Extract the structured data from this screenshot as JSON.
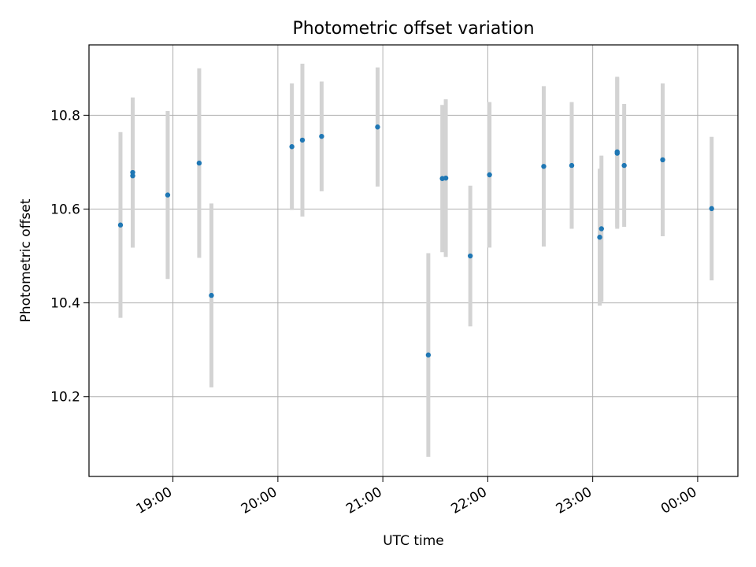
{
  "chart_data": {
    "type": "scatter",
    "title": "Photometric offset variation",
    "xlabel": "UTC time",
    "ylabel": "Photometric offset",
    "x_axis_type": "time",
    "xlim": [
      "18:12",
      "24:23"
    ],
    "ylim": [
      10.03,
      10.95
    ],
    "x_ticks": [
      {
        "value": "19:00",
        "label": "19:00"
      },
      {
        "value": "20:00",
        "label": "20:00"
      },
      {
        "value": "21:00",
        "label": "21:00"
      },
      {
        "value": "22:00",
        "label": "22:00"
      },
      {
        "value": "23:00",
        "label": "23:00"
      },
      {
        "value": "24:00",
        "label": "00:00"
      }
    ],
    "y_ticks": [
      {
        "value": 10.2,
        "label": "10.2"
      },
      {
        "value": 10.4,
        "label": "10.4"
      },
      {
        "value": 10.6,
        "label": "10.6"
      },
      {
        "value": 10.8,
        "label": "10.8"
      }
    ],
    "grid": true,
    "marker_color": "#1f77b4",
    "errorbar_color": "#d3d3d3",
    "points": [
      {
        "x": "18:30",
        "y": 10.566,
        "err_low": 10.368,
        "err_high": 10.764
      },
      {
        "x": "18:37",
        "y": 10.678,
        "err_low": 10.518,
        "err_high": 10.838
      },
      {
        "x": "18:37",
        "y": 10.671,
        "err_low": 10.518,
        "err_high": 10.824
      },
      {
        "x": "18:57",
        "y": 10.63,
        "err_low": 10.451,
        "err_high": 10.809
      },
      {
        "x": "19:15",
        "y": 10.698,
        "err_low": 10.496,
        "err_high": 10.9
      },
      {
        "x": "19:22",
        "y": 10.416,
        "err_low": 10.22,
        "err_high": 10.612
      },
      {
        "x": "20:08",
        "y": 10.733,
        "err_low": 10.598,
        "err_high": 10.868
      },
      {
        "x": "20:14",
        "y": 10.747,
        "err_low": 10.584,
        "err_high": 10.91
      },
      {
        "x": "20:25",
        "y": 10.755,
        "err_low": 10.638,
        "err_high": 10.872
      },
      {
        "x": "20:57",
        "y": 10.775,
        "err_low": 10.648,
        "err_high": 10.902
      },
      {
        "x": "21:26",
        "y": 10.289,
        "err_low": 10.072,
        "err_high": 10.506
      },
      {
        "x": "21:34",
        "y": 10.665,
        "err_low": 10.508,
        "err_high": 10.822
      },
      {
        "x": "21:36",
        "y": 10.666,
        "err_low": 10.498,
        "err_high": 10.834
      },
      {
        "x": "21:50",
        "y": 10.5,
        "err_low": 10.35,
        "err_high": 10.65
      },
      {
        "x": "22:01",
        "y": 10.673,
        "err_low": 10.518,
        "err_high": 10.828
      },
      {
        "x": "22:32",
        "y": 10.691,
        "err_low": 10.52,
        "err_high": 10.862
      },
      {
        "x": "22:48",
        "y": 10.693,
        "err_low": 10.558,
        "err_high": 10.828
      },
      {
        "x": "23:04",
        "y": 10.54,
        "err_low": 10.394,
        "err_high": 10.686
      },
      {
        "x": "23:05",
        "y": 10.558,
        "err_low": 10.402,
        "err_high": 10.714
      },
      {
        "x": "23:14",
        "y": 10.722,
        "err_low": 10.562,
        "err_high": 10.882
      },
      {
        "x": "23:14",
        "y": 10.719,
        "err_low": 10.558,
        "err_high": 10.88
      },
      {
        "x": "23:18",
        "y": 10.693,
        "err_low": 10.562,
        "err_high": 10.824
      },
      {
        "x": "23:40",
        "y": 10.705,
        "err_low": 10.542,
        "err_high": 10.868
      },
      {
        "x": "24:08",
        "y": 10.601,
        "err_low": 10.448,
        "err_high": 10.754
      }
    ]
  }
}
